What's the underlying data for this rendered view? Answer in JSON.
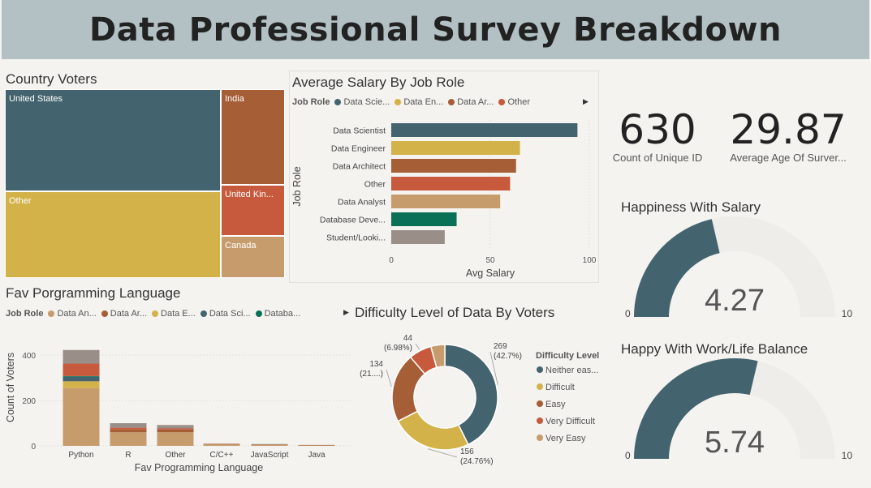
{
  "header": {
    "title": "Data Professional Survey Breakdown"
  },
  "colors": {
    "teal": "#43646e",
    "gold": "#d3b24a",
    "brown": "#a65e36",
    "red": "#c75a3c",
    "tan": "#c69c6d",
    "green": "#0a7157",
    "gray": "#9a8f88"
  },
  "treemap": {
    "title": "Country Voters",
    "items": [
      {
        "label": "United States"
      },
      {
        "label": "Other"
      },
      {
        "label": "India"
      },
      {
        "label": "United Kin..."
      },
      {
        "label": "Canada"
      }
    ]
  },
  "kpis": {
    "count": {
      "value": "630",
      "label": "Count of Unique ID"
    },
    "age": {
      "value": "29.87",
      "label": "Average Age Of Surver..."
    }
  },
  "gauges": {
    "salary": {
      "title": "Happiness With Salary",
      "value": 4.27,
      "value_label": "4.27",
      "min_label": "0",
      "max_label": "10",
      "min": 0,
      "max": 10
    },
    "worklife": {
      "title": "Happy With Work/Life Balance",
      "value": 5.74,
      "value_label": "5.74",
      "min_label": "0",
      "max_label": "10",
      "min": 0,
      "max": 10
    }
  },
  "chart_data": [
    {
      "type": "bar",
      "orientation": "horizontal",
      "title": "Average Salary By Job Role",
      "legend": {
        "title": "Job Role",
        "entries": [
          "Data Scie...",
          "Data En...",
          "Data Ar...",
          "Other"
        ]
      },
      "categories": [
        "Data Scientist",
        "Data Engineer",
        "Data Architect",
        "Other",
        "Data Analyst",
        "Database Deve...",
        "Student/Looki..."
      ],
      "values": [
        94,
        65,
        63,
        60,
        55,
        33,
        27
      ],
      "xlabel": "Avg Salary",
      "ylabel": "Job Role",
      "xlim": [
        0,
        100
      ],
      "xticks": [
        "0",
        "50",
        "100"
      ]
    },
    {
      "type": "bar",
      "stacked": true,
      "title": "Fav Porgramming Language",
      "legend": {
        "title": "Job Role",
        "entries": [
          "Data An...",
          "Data Ar...",
          "Data E...",
          "Data Sci...",
          "Databa..."
        ]
      },
      "categories": [
        "Python",
        "R",
        "Other",
        "C/C++",
        "JavaScript",
        "Java"
      ],
      "series": [
        {
          "name": "Data An...",
          "values": [
            255,
            60,
            60,
            6,
            5,
            3
          ]
        },
        {
          "name": "Data Ar...",
          "values": [
            0,
            12,
            12,
            3,
            2,
            1
          ]
        },
        {
          "name": "Data E...",
          "values": [
            30,
            0,
            0,
            0,
            0,
            0
          ]
        },
        {
          "name": "Data Sci...",
          "values": [
            20,
            0,
            0,
            0,
            0,
            0
          ]
        },
        {
          "name": "Databa...",
          "values": [
            3,
            0,
            0,
            0,
            0,
            0
          ]
        },
        {
          "values": [
            55,
            8,
            5,
            0,
            0,
            0
          ]
        },
        {
          "values": [
            60,
            20,
            15,
            0,
            1,
            0
          ]
        }
      ],
      "xlabel": "Fav Programming Language",
      "ylabel": "Count of Voters",
      "ylim": [
        0,
        440
      ],
      "yticks": [
        "0",
        "200",
        "400"
      ]
    },
    {
      "type": "pie",
      "donut": true,
      "title": "Difficulty Level of Data By Voters",
      "legend": {
        "title": "Difficulty Level",
        "entries": [
          "Neither eas...",
          "Difficult",
          "Easy",
          "Very Difficult",
          "Very Easy"
        ]
      },
      "slices": [
        {
          "label": "Neither eas...",
          "value": 269,
          "pct": "(42.7%)"
        },
        {
          "label": "Difficult",
          "value": 156,
          "pct": "(24.76%)"
        },
        {
          "label": "Easy",
          "value": 134,
          "pct": "(21....)"
        },
        {
          "label": "Very Difficult",
          "value": 44,
          "pct": "(6.98%)"
        },
        {
          "label": "Very Easy",
          "value": 27,
          "pct": ""
        }
      ]
    }
  ]
}
